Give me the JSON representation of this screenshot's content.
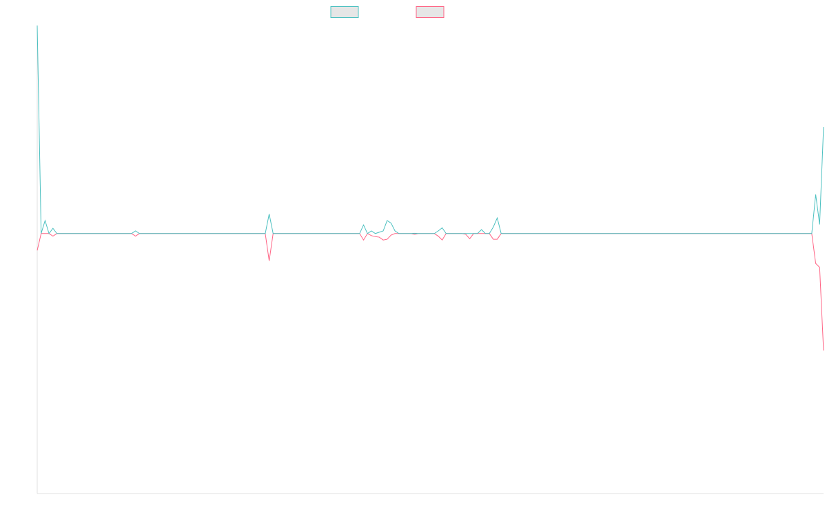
{
  "chart_data": {
    "type": "line",
    "title": "",
    "xlabel": "",
    "ylabel": "",
    "x_count": 200,
    "ylim": [
      -1,
      0.8
    ],
    "grid": false,
    "legend_position": "top",
    "series": [
      {
        "color": "#4bc0c0",
        "points": [
          [
            0,
            0.8
          ],
          [
            1,
            0.0
          ],
          [
            2,
            0.05
          ],
          [
            3,
            0.0
          ],
          [
            4,
            0.02
          ],
          [
            5,
            0.0
          ],
          [
            24,
            0.0
          ],
          [
            25,
            0.01
          ],
          [
            26,
            0.0
          ],
          [
            58,
            0.0
          ],
          [
            59,
            0.075
          ],
          [
            60,
            0.0
          ],
          [
            82,
            0.0
          ],
          [
            83,
            0.033
          ],
          [
            84,
            0.0
          ],
          [
            85,
            0.01
          ],
          [
            86,
            0.0
          ],
          [
            87,
            0.005
          ],
          [
            88,
            0.01
          ],
          [
            89,
            0.05
          ],
          [
            90,
            0.04
          ],
          [
            91,
            0.01
          ],
          [
            92,
            0.0
          ],
          [
            95,
            0.0
          ],
          [
            96,
            0.001
          ],
          [
            97,
            0.0
          ],
          [
            101,
            0.0
          ],
          [
            102,
            0.01
          ],
          [
            103,
            0.022
          ],
          [
            104,
            0.0
          ],
          [
            112,
            0.0
          ],
          [
            113,
            0.015
          ],
          [
            114,
            0.0
          ],
          [
            115,
            0.0
          ],
          [
            116,
            0.025
          ],
          [
            117,
            0.06
          ],
          [
            118,
            0.0
          ],
          [
            197,
            0.0
          ],
          [
            198,
            0.15
          ],
          [
            199,
            0.035
          ],
          [
            200,
            0.41
          ]
        ]
      },
      {
        "color": "#ff6384",
        "points": [
          [
            0,
            -0.065
          ],
          [
            1,
            0.0
          ],
          [
            2,
            0.0
          ],
          [
            3,
            0.0
          ],
          [
            4,
            -0.01
          ],
          [
            5,
            0.0
          ],
          [
            24,
            0.0
          ],
          [
            25,
            -0.01
          ],
          [
            26,
            0.0
          ],
          [
            58,
            0.0
          ],
          [
            59,
            -0.105
          ],
          [
            60,
            0.0
          ],
          [
            82,
            0.0
          ],
          [
            83,
            -0.025
          ],
          [
            84,
            0.0
          ],
          [
            85,
            -0.008
          ],
          [
            86,
            -0.012
          ],
          [
            87,
            -0.014
          ],
          [
            88,
            -0.025
          ],
          [
            89,
            -0.022
          ],
          [
            90,
            -0.006
          ],
          [
            91,
            0.0
          ],
          [
            95,
            0.0
          ],
          [
            96,
            -0.003
          ],
          [
            97,
            0.0
          ],
          [
            101,
            0.0
          ],
          [
            102,
            -0.01
          ],
          [
            103,
            -0.025
          ],
          [
            104,
            0.0
          ],
          [
            108,
            0.0
          ],
          [
            109,
            -0.003
          ],
          [
            110,
            -0.02
          ],
          [
            111,
            0.0
          ],
          [
            115,
            0.0
          ],
          [
            116,
            -0.022
          ],
          [
            117,
            -0.022
          ],
          [
            118,
            0.0
          ],
          [
            197,
            0.0
          ],
          [
            198,
            -0.115
          ],
          [
            199,
            -0.13
          ],
          [
            200,
            -0.45
          ]
        ]
      }
    ]
  }
}
